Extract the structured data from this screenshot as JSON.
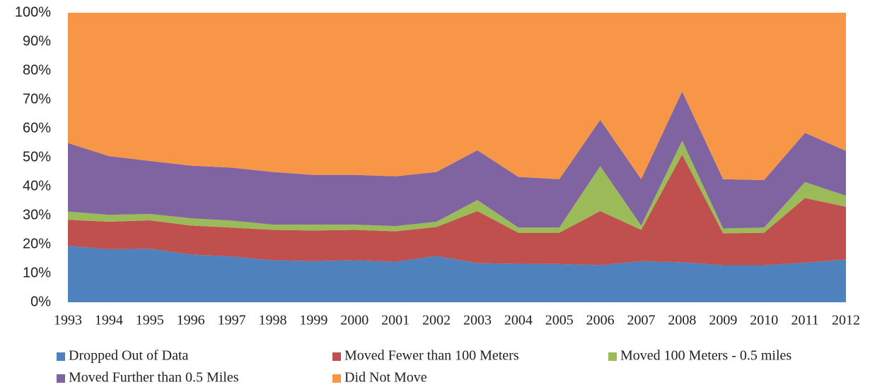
{
  "chart_data": {
    "type": "stacked_area",
    "categories": [
      "1993",
      "1994",
      "1995",
      "1996",
      "1997",
      "1998",
      "1999",
      "2000",
      "2001",
      "2002",
      "2003",
      "2004",
      "2005",
      "2006",
      "2007",
      "2008",
      "2009",
      "2010",
      "2011",
      "2012"
    ],
    "series": [
      {
        "name": "Dropped Out of Data",
        "color": "#4f81bd",
        "values": [
          19.5,
          18.3,
          18.5,
          16.5,
          15.8,
          14.5,
          14.2,
          14.5,
          14,
          16,
          13.5,
          13.3,
          13.2,
          12.8,
          14.2,
          13.8,
          12.8,
          12.8,
          13.7,
          14.8
        ]
      },
      {
        "name": "Moved Fewer than 100 Meters",
        "color": "#c0504d",
        "values": [
          9,
          9.5,
          9.8,
          10,
          10,
          10.5,
          10.6,
          10.5,
          10.5,
          10,
          18,
          10.7,
          10.8,
          18.7,
          10.8,
          37.2,
          11,
          11.2,
          22.3,
          18.2
        ]
      },
      {
        "name": "Moved 100 Meters - 0.5 miles",
        "color": "#9bbb59",
        "values": [
          2.8,
          2.4,
          2.2,
          2.5,
          2.4,
          1.8,
          2,
          1.8,
          1.8,
          1.8,
          3.8,
          1.8,
          1.8,
          15.5,
          1.5,
          4.8,
          1.7,
          1.8,
          5.5,
          3.8
        ]
      },
      {
        "name": "Moved Further than 0.5 Miles",
        "color": "#8064a2",
        "values": [
          23.7,
          20.3,
          18.3,
          18.2,
          18.3,
          18.2,
          17.2,
          17.2,
          17.2,
          17.2,
          17.2,
          17.5,
          16.7,
          16,
          16,
          17,
          17,
          16.4,
          17,
          15.5
        ]
      },
      {
        "name": "Did Not Move",
        "color": "#f79646",
        "values": [
          45,
          49.5,
          51.2,
          52.8,
          53.5,
          55,
          56,
          56,
          56.5,
          55,
          47.5,
          56.7,
          57.5,
          37,
          57.5,
          27.2,
          57.5,
          57.8,
          41.5,
          47.7
        ]
      }
    ],
    "ylim": [
      0,
      100
    ],
    "yticks": [
      {
        "value": 0,
        "label": "0%"
      },
      {
        "value": 10,
        "label": "10%"
      },
      {
        "value": 20,
        "label": "20%"
      },
      {
        "value": 30,
        "label": "30%"
      },
      {
        "value": 40,
        "label": "40%"
      },
      {
        "value": 50,
        "label": "50%"
      },
      {
        "value": 60,
        "label": "60%"
      },
      {
        "value": 70,
        "label": "70%"
      },
      {
        "value": 80,
        "label": "80%"
      },
      {
        "value": 90,
        "label": "90%"
      },
      {
        "value": 100,
        "label": "100%"
      }
    ],
    "grid": false,
    "legend": "bottom"
  }
}
